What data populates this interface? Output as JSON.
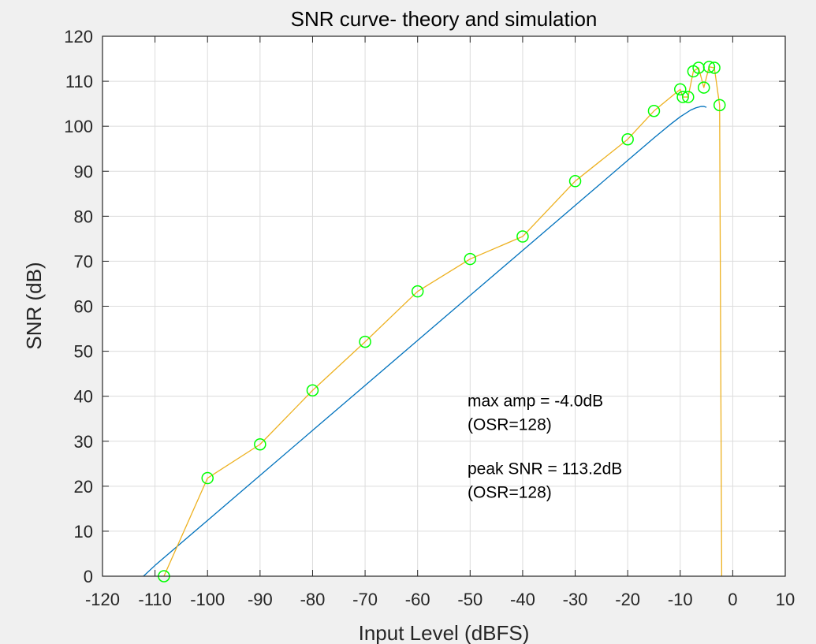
{
  "chart_data": {
    "type": "line",
    "title": "SNR curve- theory and simulation",
    "xlabel": "Input Level (dBFS)",
    "ylabel": "SNR (dB)",
    "xlim": [
      -120,
      10
    ],
    "ylim": [
      0,
      120
    ],
    "xticks": [
      -120,
      -110,
      -100,
      -90,
      -80,
      -70,
      -60,
      -50,
      -40,
      -30,
      -20,
      -10,
      0,
      10
    ],
    "yticks": [
      0,
      10,
      20,
      30,
      40,
      50,
      60,
      70,
      80,
      90,
      100,
      110,
      120
    ],
    "grid": true,
    "colors": {
      "theory": "#0072bd",
      "simulation": "#edb120",
      "markers": "#00ff00"
    },
    "series": [
      {
        "style": "line",
        "x": [
          -112.2,
          -110,
          -100,
          -90,
          -80,
          -70,
          -60,
          -50,
          -40,
          -30,
          -20,
          -15,
          -12,
          -10,
          -8,
          -7,
          -6,
          -5.5,
          -5
        ],
        "y": [
          0,
          2.4,
          12.4,
          22.4,
          32.4,
          42.4,
          52.4,
          62.4,
          72.4,
          82.4,
          92.4,
          97.4,
          100.3,
          102.1,
          103.6,
          104.1,
          104.4,
          104.4,
          104.2
        ]
      },
      {
        "style": "line-markers",
        "x": [
          -108.3,
          -100,
          -90,
          -80,
          -70,
          -60,
          -50,
          -40,
          -30,
          -20,
          -15,
          -10,
          -9.5,
          -8.5,
          -7.5,
          -6.5,
          -5.5,
          -4.5,
          -3.5,
          -2.5,
          -2.1
        ],
        "y": [
          0,
          21.8,
          29.3,
          41.3,
          52.1,
          63.3,
          70.5,
          75.5,
          87.8,
          97.1,
          103.4,
          108.2,
          106.5,
          106.5,
          112.2,
          113.0,
          108.6,
          113.2,
          113.0,
          104.7,
          0
        ],
        "markers": [
          true,
          true,
          true,
          true,
          true,
          true,
          true,
          true,
          true,
          true,
          true,
          true,
          true,
          true,
          true,
          true,
          true,
          true,
          true,
          true,
          false
        ]
      }
    ],
    "annotations": [
      {
        "lines": [
          "max amp = -4.0dB",
          "(OSR=128)"
        ],
        "x": -50.5,
        "y": 33
      },
      {
        "lines": [
          "peak SNR = 113.2dB",
          "(OSR=128)"
        ],
        "x": -50.5,
        "y": 18
      }
    ]
  }
}
